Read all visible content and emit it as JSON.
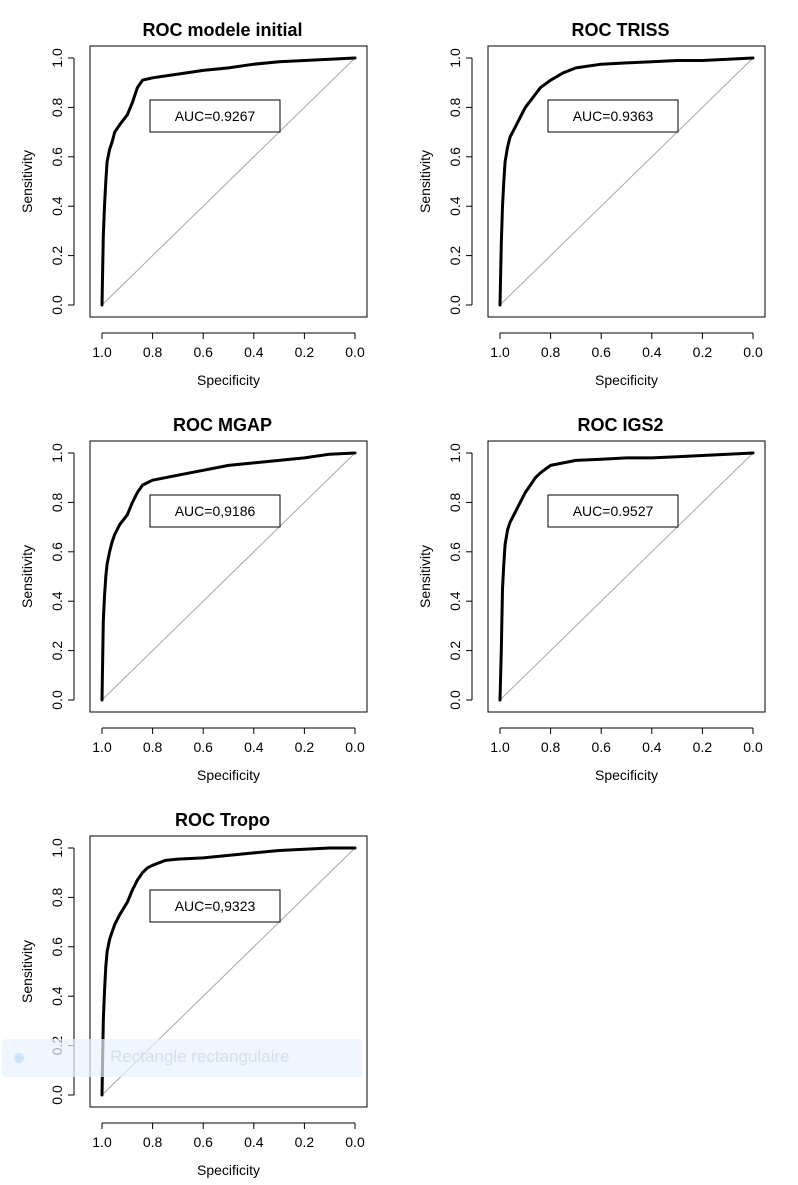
{
  "chart_data": [
    {
      "type": "line",
      "title": "ROC modele initial",
      "xlabel": "Specificity",
      "ylabel": "Sensitivity",
      "xlim": [
        1.0,
        0.0
      ],
      "ylim": [
        0.0,
        1.0
      ],
      "x_reversed": true,
      "xticks": [
        "1.0",
        "0.8",
        "0.6",
        "0.4",
        "0.2",
        "0.0"
      ],
      "yticks": [
        "0.0",
        "0.2",
        "0.4",
        "0.6",
        "0.8",
        "1.0"
      ],
      "annotation": "AUC=0.9267",
      "series": [
        {
          "specificity": [
            1.0,
            0.995,
            0.99,
            0.985,
            0.98,
            0.97,
            0.96,
            0.95,
            0.93,
            0.9,
            0.88,
            0.86,
            0.84,
            0.8,
            0.7,
            0.6,
            0.5,
            0.4,
            0.3,
            0.2,
            0.1,
            0.0
          ],
          "sensitivity": [
            0.0,
            0.28,
            0.4,
            0.5,
            0.58,
            0.63,
            0.66,
            0.7,
            0.73,
            0.77,
            0.82,
            0.88,
            0.91,
            0.92,
            0.935,
            0.95,
            0.96,
            0.975,
            0.985,
            0.99,
            0.995,
            1.0
          ]
        }
      ],
      "diagonal": true
    },
    {
      "type": "line",
      "title": "ROC TRISS",
      "xlabel": "Specificity",
      "ylabel": "Sensitivity",
      "xlim": [
        1.0,
        0.0
      ],
      "ylim": [
        0.0,
        1.0
      ],
      "x_reversed": true,
      "xticks": [
        "1.0",
        "0.8",
        "0.6",
        "0.4",
        "0.2",
        "0.0"
      ],
      "yticks": [
        "0.0",
        "0.2",
        "0.4",
        "0.6",
        "0.8",
        "1.0"
      ],
      "annotation": "AUC=0.9363",
      "series": [
        {
          "specificity": [
            1.0,
            0.995,
            0.99,
            0.985,
            0.98,
            0.97,
            0.96,
            0.94,
            0.92,
            0.9,
            0.87,
            0.84,
            0.8,
            0.75,
            0.7,
            0.6,
            0.5,
            0.4,
            0.3,
            0.2,
            0.1,
            0.0
          ],
          "sensitivity": [
            0.0,
            0.25,
            0.4,
            0.5,
            0.58,
            0.64,
            0.68,
            0.72,
            0.76,
            0.8,
            0.84,
            0.88,
            0.91,
            0.94,
            0.96,
            0.975,
            0.98,
            0.985,
            0.99,
            0.99,
            0.995,
            1.0
          ]
        }
      ],
      "diagonal": true
    },
    {
      "type": "line",
      "title": "ROC MGAP",
      "xlabel": "Specificity",
      "ylabel": "Sensitivity",
      "xlim": [
        1.0,
        0.0
      ],
      "ylim": [
        0.0,
        1.0
      ],
      "x_reversed": true,
      "xticks": [
        "1.0",
        "0.8",
        "0.6",
        "0.4",
        "0.2",
        "0.0"
      ],
      "yticks": [
        "0.0",
        "0.2",
        "0.4",
        "0.6",
        "0.8",
        "1.0"
      ],
      "annotation": "AUC=0,9186",
      "series": [
        {
          "specificity": [
            1.0,
            0.995,
            0.99,
            0.985,
            0.98,
            0.97,
            0.96,
            0.95,
            0.93,
            0.9,
            0.88,
            0.86,
            0.84,
            0.82,
            0.8,
            0.7,
            0.6,
            0.5,
            0.4,
            0.3,
            0.2,
            0.1,
            0.0
          ],
          "sensitivity": [
            0.0,
            0.32,
            0.42,
            0.5,
            0.55,
            0.6,
            0.64,
            0.67,
            0.71,
            0.75,
            0.8,
            0.84,
            0.87,
            0.88,
            0.89,
            0.91,
            0.93,
            0.95,
            0.96,
            0.97,
            0.98,
            0.995,
            1.0
          ]
        }
      ],
      "diagonal": true
    },
    {
      "type": "line",
      "title": "ROC IGS2",
      "xlabel": "Specificity",
      "ylabel": "Sensitivity",
      "xlim": [
        1.0,
        0.0
      ],
      "ylim": [
        0.0,
        1.0
      ],
      "x_reversed": true,
      "xticks": [
        "1.0",
        "0.8",
        "0.6",
        "0.4",
        "0.2",
        "0.0"
      ],
      "yticks": [
        "0.0",
        "0.2",
        "0.4",
        "0.6",
        "0.8",
        "1.0"
      ],
      "annotation": "AUC=0.9527",
      "series": [
        {
          "specificity": [
            1.0,
            0.995,
            0.99,
            0.985,
            0.98,
            0.97,
            0.96,
            0.94,
            0.92,
            0.9,
            0.88,
            0.86,
            0.84,
            0.82,
            0.8,
            0.75,
            0.7,
            0.6,
            0.5,
            0.4,
            0.3,
            0.2,
            0.1,
            0.0
          ],
          "sensitivity": [
            0.0,
            0.2,
            0.45,
            0.55,
            0.63,
            0.69,
            0.72,
            0.76,
            0.8,
            0.84,
            0.87,
            0.9,
            0.92,
            0.935,
            0.95,
            0.96,
            0.97,
            0.975,
            0.98,
            0.98,
            0.985,
            0.99,
            0.995,
            1.0
          ]
        }
      ],
      "diagonal": true
    },
    {
      "type": "line",
      "title": "ROC Tropo",
      "xlabel": "Specificity",
      "ylabel": "Sensitivity",
      "xlim": [
        1.0,
        0.0
      ],
      "ylim": [
        0.0,
        1.0
      ],
      "x_reversed": true,
      "xticks": [
        "1.0",
        "0.8",
        "0.6",
        "0.4",
        "0.2",
        "0.0"
      ],
      "yticks": [
        "0.0",
        "0.2",
        "0.4",
        "0.6",
        "0.8",
        "1.0"
      ],
      "annotation": "AUC=0,9323",
      "series": [
        {
          "specificity": [
            1.0,
            0.995,
            0.99,
            0.985,
            0.98,
            0.97,
            0.96,
            0.95,
            0.93,
            0.9,
            0.88,
            0.86,
            0.84,
            0.82,
            0.8,
            0.75,
            0.7,
            0.6,
            0.5,
            0.4,
            0.3,
            0.2,
            0.1,
            0.0
          ],
          "sensitivity": [
            0.0,
            0.3,
            0.42,
            0.52,
            0.58,
            0.63,
            0.66,
            0.69,
            0.73,
            0.78,
            0.83,
            0.87,
            0.9,
            0.92,
            0.93,
            0.95,
            0.955,
            0.96,
            0.97,
            0.98,
            0.99,
            0.995,
            1.0,
            1.0
          ]
        }
      ],
      "diagonal": true
    }
  ],
  "overlay": {
    "faded_text": "Rectangle rectangulaire"
  }
}
